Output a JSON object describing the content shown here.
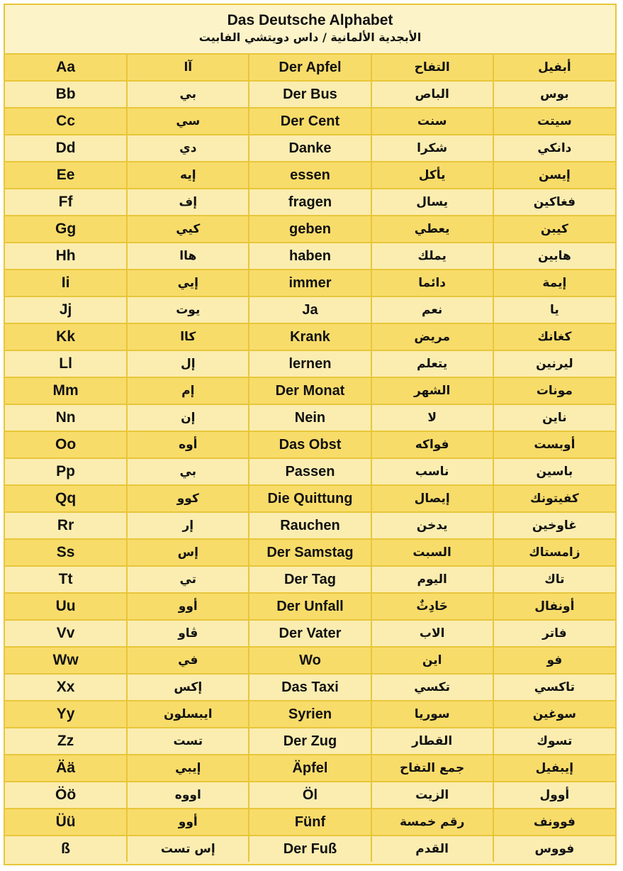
{
  "title": "Das Deutsche Alphabet",
  "subtitle": "الأبجدية الألمانية / داس دويتشي الفابيت",
  "rows": [
    {
      "letter": "Aa",
      "letter_pron": "آا",
      "word": "Der Apfel",
      "meaning": "التفاح",
      "word_pron": "أبفيل"
    },
    {
      "letter": "Bb",
      "letter_pron": "بي",
      "word": "Der Bus",
      "meaning": "الباص",
      "word_pron": "بوس"
    },
    {
      "letter": "Cc",
      "letter_pron": "سي",
      "word": "Der Cent",
      "meaning": "سنت",
      "word_pron": "سيتت"
    },
    {
      "letter": "Dd",
      "letter_pron": "دي",
      "word": "Danke",
      "meaning": "شكرا",
      "word_pron": "دانكي"
    },
    {
      "letter": "Ee",
      "letter_pron": "إيه",
      "word": "essen",
      "meaning": "يأكل",
      "word_pron": "إيسن"
    },
    {
      "letter": "Ff",
      "letter_pron": "إف",
      "word": "fragen",
      "meaning": "يسال",
      "word_pron": "فغاكين"
    },
    {
      "letter": "Gg",
      "letter_pron": "كيي",
      "word": "geben",
      "meaning": "يعطي",
      "word_pron": "كيبن"
    },
    {
      "letter": "Hh",
      "letter_pron": "هاا",
      "word": "haben",
      "meaning": "يملك",
      "word_pron": "هابين"
    },
    {
      "letter": "Ii",
      "letter_pron": "إيي",
      "word": "immer",
      "meaning": "دائما",
      "word_pron": "إيمة"
    },
    {
      "letter": "Jj",
      "letter_pron": "يوت",
      "word": "Ja",
      "meaning": "نعم",
      "word_pron": "يا"
    },
    {
      "letter": "Kk",
      "letter_pron": "كاا",
      "word": "Krank",
      "meaning": "مريض",
      "word_pron": "كغانك"
    },
    {
      "letter": "Ll",
      "letter_pron": "إل",
      "word": "lernen",
      "meaning": "يتعلم",
      "word_pron": "ليرنين"
    },
    {
      "letter": "Mm",
      "letter_pron": "إم",
      "word": "Der Monat",
      "meaning": "الشهر",
      "word_pron": "مونات"
    },
    {
      "letter": "Nn",
      "letter_pron": "إن",
      "word": "Nein",
      "meaning": "لا",
      "word_pron": "ناين"
    },
    {
      "letter": "Oo",
      "letter_pron": "أوه",
      "word": "Das Obst",
      "meaning": "فواكه",
      "word_pron": "أوبست"
    },
    {
      "letter": "Pp",
      "letter_pron": "بي",
      "word": "Passen",
      "meaning": "ناسب",
      "word_pron": "باسين"
    },
    {
      "letter": "Qq",
      "letter_pron": "كوو",
      "word": "Die Quittung",
      "meaning": "إيصال",
      "word_pron": "كفيتونك"
    },
    {
      "letter": "Rr",
      "letter_pron": "إر",
      "word": "Rauchen",
      "meaning": "يدخن",
      "word_pron": "غاوخين"
    },
    {
      "letter": "Ss",
      "letter_pron": "إس",
      "word": "Der Samstag",
      "meaning": "السبت",
      "word_pron": "زامستاك"
    },
    {
      "letter": "Tt",
      "letter_pron": "تي",
      "word": "Der Tag",
      "meaning": "اليوم",
      "word_pron": "تاك"
    },
    {
      "letter": "Uu",
      "letter_pron": "أوو",
      "word": "Der Unfall",
      "meaning": "حَادِثٌ",
      "word_pron": "أونفال"
    },
    {
      "letter": "Vv",
      "letter_pron": "ڤاو",
      "word": "Der Vater",
      "meaning": "الاب",
      "word_pron": "فاتر"
    },
    {
      "letter": "Ww",
      "letter_pron": "في",
      "word": "Wo",
      "meaning": "اين",
      "word_pron": "فو"
    },
    {
      "letter": "Xx",
      "letter_pron": "إكس",
      "word": "Das Taxi",
      "meaning": "تكسي",
      "word_pron": "تاكسي"
    },
    {
      "letter": "Yy",
      "letter_pron": "ايبسلون",
      "word": "Syrien",
      "meaning": "سوريا",
      "word_pron": "سوغين"
    },
    {
      "letter": "Zz",
      "letter_pron": "تست",
      "word": "Der Zug",
      "meaning": "القطار",
      "word_pron": "تسوك"
    },
    {
      "letter": "Ää",
      "letter_pron": "إيبي",
      "word": "Äpfel",
      "meaning": "جمع التفاح",
      "word_pron": "إيبفيل"
    },
    {
      "letter": "Öö",
      "letter_pron": "اووه",
      "word": "Öl",
      "meaning": "الزيت",
      "word_pron": "أوول"
    },
    {
      "letter": "Üü",
      "letter_pron": "أوو",
      "word": "Fünf",
      "meaning": "رقم خمسة",
      "word_pron": "فوونف"
    },
    {
      "letter": "ß",
      "letter_pron": "إس تست",
      "word": "Der Fuß",
      "meaning": "القدم",
      "word_pron": "فووس"
    }
  ]
}
